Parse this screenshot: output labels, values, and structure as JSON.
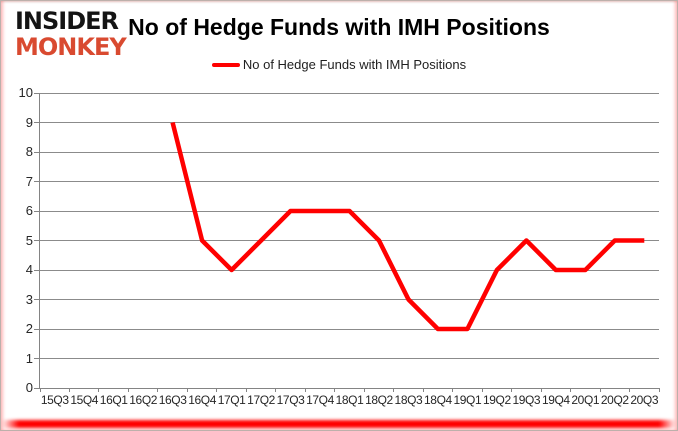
{
  "logo": {
    "line1": "INSIDER",
    "line2": "MONKEY"
  },
  "chart_data": {
    "type": "line",
    "title": "No of Hedge Funds with IMH Positions",
    "categories": [
      "15Q3",
      "15Q4",
      "16Q1",
      "16Q2",
      "16Q3",
      "16Q4",
      "17Q1",
      "17Q2",
      "17Q3",
      "17Q4",
      "18Q1",
      "18Q2",
      "18Q3",
      "18Q4",
      "19Q1",
      "19Q2",
      "19Q3",
      "19Q4",
      "20Q1",
      "20Q2",
      "20Q3"
    ],
    "series": [
      {
        "name": "No of Hedge Funds with IMH Positions",
        "color": "#ff0000",
        "values": [
          null,
          null,
          null,
          null,
          9,
          5,
          4,
          5,
          6,
          6,
          6,
          5,
          3,
          2,
          2,
          4,
          5,
          4,
          4,
          5,
          5
        ]
      }
    ],
    "xlabel": "",
    "ylabel": "",
    "ylim": [
      0,
      10
    ],
    "ytick_step": 1,
    "grid": "horizontal",
    "legend_position": "top-center"
  },
  "colors": {
    "line_red": "#ff0000",
    "logo_red": "#d94a30",
    "grid_gray": "#8b8b8b",
    "text_dark": "#262626",
    "glow_red": "#ff0000"
  }
}
